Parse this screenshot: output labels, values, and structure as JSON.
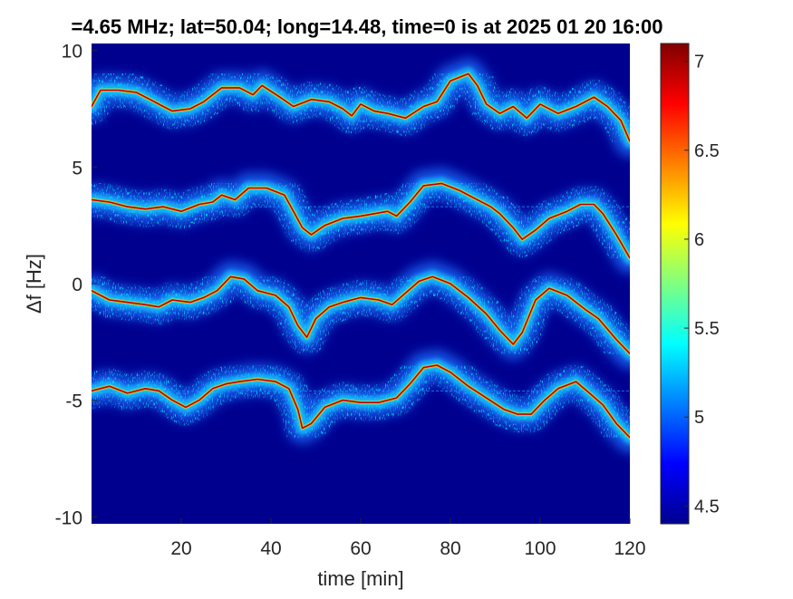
{
  "chart_data": {
    "type": "heatmap",
    "title": "=4.65 MHz;  lat=50.04; long=14.48, time=0 is at 2025 01 20 16:00",
    "xlabel": "time [min]",
    "ylabel": "Δf [Hz]",
    "xlim": [
      0,
      120
    ],
    "ylim": [
      -10.3,
      10.3
    ],
    "x_ticks": [
      20,
      40,
      60,
      80,
      100,
      120
    ],
    "y_ticks": [
      10,
      5,
      0,
      -5,
      -10
    ],
    "colorbar": {
      "colormap": "jet",
      "range": [
        4.4,
        7.1
      ],
      "ticks": [
        7,
        6.5,
        6,
        5.5,
        5,
        4.5
      ]
    },
    "traces": [
      {
        "name": "",
        "points": [
          [
            0,
            7.6
          ],
          [
            2,
            8.3
          ],
          [
            6,
            8.3
          ],
          [
            10,
            8.2
          ],
          [
            13,
            7.9
          ],
          [
            16,
            7.6
          ],
          [
            18,
            7.4
          ],
          [
            22,
            7.5
          ],
          [
            25,
            7.8
          ],
          [
            29,
            8.4
          ],
          [
            33,
            8.4
          ],
          [
            36,
            8.1
          ],
          [
            38,
            8.5
          ],
          [
            42,
            8.0
          ],
          [
            45,
            7.6
          ],
          [
            49,
            7.9
          ],
          [
            53,
            7.8
          ],
          [
            56,
            7.5
          ],
          [
            58,
            7.2
          ],
          [
            60,
            7.7
          ],
          [
            63,
            7.4
          ],
          [
            66,
            7.3
          ],
          [
            70,
            7.1
          ],
          [
            74,
            7.6
          ],
          [
            77,
            7.8
          ],
          [
            80,
            8.7
          ],
          [
            84,
            9.0
          ],
          [
            86,
            8.5
          ],
          [
            88,
            7.7
          ],
          [
            91,
            7.3
          ],
          [
            94,
            7.6
          ],
          [
            97,
            7.1
          ],
          [
            100,
            7.7
          ],
          [
            104,
            7.3
          ],
          [
            108,
            7.6
          ],
          [
            112,
            8.0
          ],
          [
            115,
            7.6
          ],
          [
            118,
            7.0
          ],
          [
            120,
            6.1
          ]
        ]
      },
      {
        "name": "",
        "points": [
          [
            0,
            3.6
          ],
          [
            4,
            3.5
          ],
          [
            8,
            3.3
          ],
          [
            12,
            3.2
          ],
          [
            16,
            3.3
          ],
          [
            20,
            3.1
          ],
          [
            24,
            3.4
          ],
          [
            27,
            3.5
          ],
          [
            29,
            3.8
          ],
          [
            32,
            3.6
          ],
          [
            35,
            4.1
          ],
          [
            39,
            4.1
          ],
          [
            43,
            3.8
          ],
          [
            45,
            3.1
          ],
          [
            47,
            2.4
          ],
          [
            49,
            2.1
          ],
          [
            52,
            2.5
          ],
          [
            56,
            2.8
          ],
          [
            60,
            2.9
          ],
          [
            63,
            3.0
          ],
          [
            66,
            3.1
          ],
          [
            68,
            2.9
          ],
          [
            71,
            3.5
          ],
          [
            74,
            4.2
          ],
          [
            78,
            4.3
          ],
          [
            82,
            4.0
          ],
          [
            86,
            3.6
          ],
          [
            89,
            3.3
          ],
          [
            91,
            3.0
          ],
          [
            94,
            2.4
          ],
          [
            96,
            1.9
          ],
          [
            99,
            2.3
          ],
          [
            102,
            2.8
          ],
          [
            106,
            3.1
          ],
          [
            109,
            3.4
          ],
          [
            112,
            3.4
          ],
          [
            114,
            3.0
          ],
          [
            117,
            2.1
          ],
          [
            120,
            1.1
          ]
        ]
      },
      {
        "name": "",
        "points": [
          [
            0,
            -0.3
          ],
          [
            4,
            -0.7
          ],
          [
            8,
            -0.8
          ],
          [
            12,
            -0.9
          ],
          [
            15,
            -1.0
          ],
          [
            18,
            -0.7
          ],
          [
            22,
            -0.8
          ],
          [
            25,
            -0.6
          ],
          [
            28,
            -0.3
          ],
          [
            31,
            0.3
          ],
          [
            34,
            0.2
          ],
          [
            37,
            -0.3
          ],
          [
            41,
            -0.5
          ],
          [
            44,
            -1.0
          ],
          [
            46,
            -1.8
          ],
          [
            48,
            -2.3
          ],
          [
            50,
            -1.5
          ],
          [
            53,
            -1.0
          ],
          [
            56,
            -0.8
          ],
          [
            60,
            -0.6
          ],
          [
            64,
            -0.7
          ],
          [
            67,
            -0.9
          ],
          [
            70,
            -0.4
          ],
          [
            73,
            0.1
          ],
          [
            76,
            0.3
          ],
          [
            80,
            0.0
          ],
          [
            84,
            -0.6
          ],
          [
            88,
            -1.3
          ],
          [
            91,
            -2.0
          ],
          [
            94,
            -2.6
          ],
          [
            96,
            -2.1
          ],
          [
            99,
            -0.7
          ],
          [
            102,
            -0.2
          ],
          [
            106,
            -0.5
          ],
          [
            110,
            -1.1
          ],
          [
            113,
            -1.5
          ],
          [
            117,
            -2.4
          ],
          [
            120,
            -3.0
          ]
        ]
      },
      {
        "name": "",
        "points": [
          [
            0,
            -4.6
          ],
          [
            4,
            -4.4
          ],
          [
            8,
            -4.7
          ],
          [
            12,
            -4.5
          ],
          [
            15,
            -4.6
          ],
          [
            18,
            -5.0
          ],
          [
            21,
            -5.3
          ],
          [
            24,
            -5.0
          ],
          [
            27,
            -4.5
          ],
          [
            30,
            -4.3
          ],
          [
            33,
            -4.2
          ],
          [
            37,
            -4.1
          ],
          [
            41,
            -4.2
          ],
          [
            44,
            -4.5
          ],
          [
            46,
            -5.4
          ],
          [
            47,
            -6.2
          ],
          [
            49,
            -6.0
          ],
          [
            52,
            -5.3
          ],
          [
            56,
            -5.0
          ],
          [
            60,
            -5.1
          ],
          [
            64,
            -5.1
          ],
          [
            68,
            -4.9
          ],
          [
            71,
            -4.3
          ],
          [
            74,
            -3.6
          ],
          [
            77,
            -3.5
          ],
          [
            80,
            -3.8
          ],
          [
            84,
            -4.4
          ],
          [
            88,
            -4.9
          ],
          [
            92,
            -5.4
          ],
          [
            95,
            -5.6
          ],
          [
            98,
            -5.6
          ],
          [
            101,
            -5.0
          ],
          [
            104,
            -4.5
          ],
          [
            108,
            -4.2
          ],
          [
            111,
            -4.7
          ],
          [
            114,
            -5.2
          ],
          [
            117,
            -6.0
          ],
          [
            120,
            -6.6
          ]
        ]
      }
    ],
    "static_lines": [
      3.3,
      -4.6
    ]
  }
}
